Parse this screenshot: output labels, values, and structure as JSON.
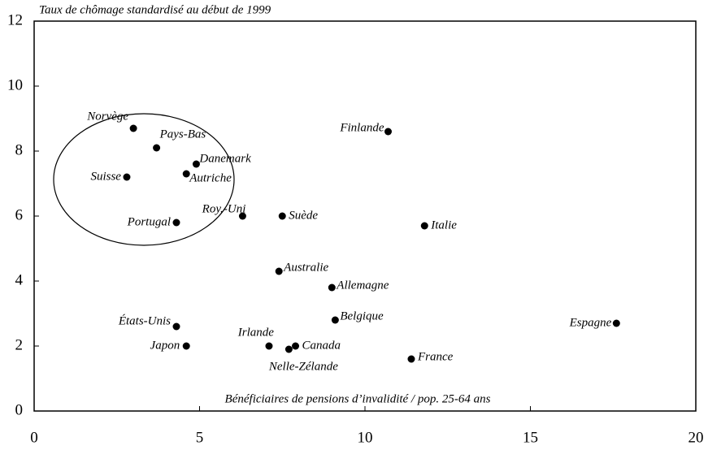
{
  "chart_data": {
    "type": "scatter",
    "title": "Taux de chômage standardisé au début de 1999",
    "x_label": "Bénéficiaires de pensions d’invalidité / pop. 25-64 ans",
    "series": [
      {
        "labels": [
          "Norvège",
          "Pays-Bas",
          "Danemark",
          "Autriche",
          "Suisse",
          "Roy.-Uni",
          "Portugal",
          "Suède",
          "Finlande",
          "Italie",
          "Australie",
          "Allemagne",
          "Belgique",
          "États-Unis",
          "Japon",
          "Irlande",
          "Nelle-Zélande",
          "Canada",
          "France",
          "Espagne"
        ],
        "color": "#000000",
        "x": [
          3.0,
          3.7,
          4.9,
          4.6,
          2.8,
          6.3,
          4.3,
          7.5,
          10.7,
          11.8,
          7.4,
          9.0,
          9.1,
          4.3,
          4.6,
          7.1,
          7.7,
          7.9,
          11.4,
          17.6
        ],
        "values": [
          8.7,
          8.1,
          7.6,
          7.3,
          7.2,
          6.0,
          5.8,
          6.0,
          8.6,
          5.7,
          4.3,
          3.8,
          2.8,
          2.6,
          2.0,
          2.0,
          1.9,
          2.0,
          1.6,
          2.7
        ]
      }
    ],
    "xlim": [
      0,
      20
    ],
    "xticks": [
      0,
      5,
      10,
      15,
      20
    ],
    "ylim": [
      0,
      12
    ],
    "yticks": [
      0,
      2,
      4,
      6,
      8,
      10,
      12
    ]
  }
}
